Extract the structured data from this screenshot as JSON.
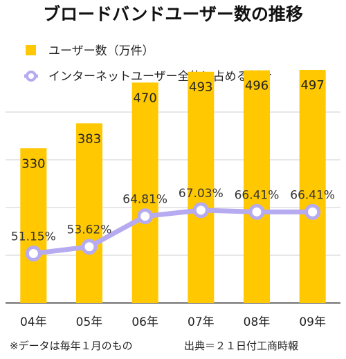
{
  "chart_data": {
    "type": "bar",
    "title": "ブロードバンドユーザー数の推移",
    "categories": [
      "04年",
      "05年",
      "06年",
      "07年",
      "08年",
      "09年"
    ],
    "series": [
      {
        "name": "ユーザー数（万件）",
        "type": "bar",
        "values": [
          330,
          383,
          470,
          493,
          496,
          497
        ],
        "value_labels": [
          "330",
          "383",
          "470",
          "493",
          "496",
          "497"
        ],
        "color": "#ffc800"
      },
      {
        "name": "インターネットユーザー全体に占める割合",
        "type": "line",
        "values": [
          51.15,
          53.62,
          64.81,
          67.03,
          66.41,
          66.41
        ],
        "value_labels": [
          "51.15%",
          "53.62%",
          "64.81%",
          "67.03%",
          "66.41%",
          "66.41%"
        ],
        "color": "#b6aaf0"
      }
    ],
    "ylim_bar": [
      0,
      500
    ],
    "ylim_line": [
      0,
      100
    ],
    "grid": true,
    "legend_position": "top-left",
    "note": "※データは毎年１月のもの",
    "source": "出典＝２１日付工商時報"
  }
}
